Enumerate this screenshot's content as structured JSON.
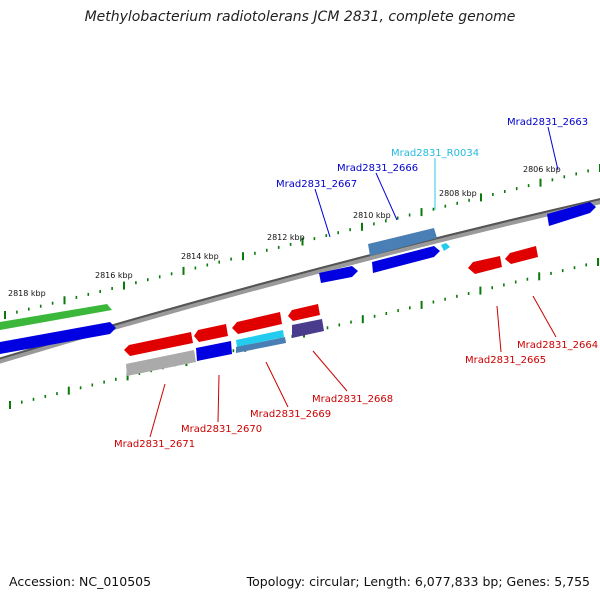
{
  "title": "Methylobacterium radiotolerans JCM 2831, complete genome",
  "footer": {
    "accession": "Accession: NC_010505",
    "summary": "Topology: circular; Length: 6,077,833 bp; Genes: 5,755"
  },
  "colors": {
    "forward": "#0000e0",
    "reverse": "#e00000",
    "rna": "#22ccee",
    "pseudo": "#4a7fb5",
    "gray_gene": "#aaaaaa",
    "purple_gene": "#4a3c8c",
    "green_gene": "#3bb83b",
    "backbone": "#666666",
    "tick": "#0a7a0a"
  },
  "scale_labels": [
    "2818 kbp",
    "2816 kbp",
    "2814 kbp",
    "2812 kbp",
    "2810 kbp",
    "2808 kbp",
    "2806 kbp"
  ],
  "gene_labels": [
    {
      "id": "Mrad2831_2663",
      "color": "blue"
    },
    {
      "id": "Mrad2831_R0034",
      "color": "cyan"
    },
    {
      "id": "Mrad2831_2666",
      "color": "blue"
    },
    {
      "id": "Mrad2831_2667",
      "color": "blue"
    },
    {
      "id": "Mrad2831_2664",
      "color": "red"
    },
    {
      "id": "Mrad2831_2665",
      "color": "red"
    },
    {
      "id": "Mrad2831_2668",
      "color": "red"
    },
    {
      "id": "Mrad2831_2669",
      "color": "red"
    },
    {
      "id": "Mrad2831_2670",
      "color": "red"
    },
    {
      "id": "Mrad2831_2671",
      "color": "red"
    }
  ]
}
